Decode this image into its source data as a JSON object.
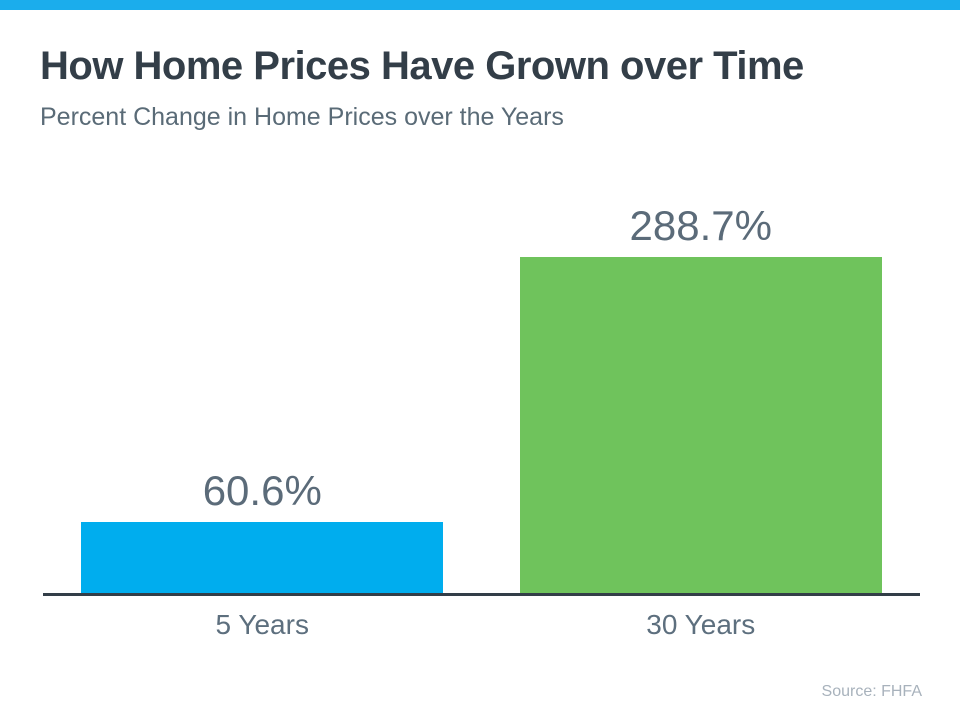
{
  "page": {
    "top_banner_color": "#1badec"
  },
  "header": {
    "title": "How Home Prices Have Grown over Time",
    "subtitle": "Percent Change in Home Prices over the Years"
  },
  "footer": {
    "source": "Source: FHFA"
  },
  "chart_data": {
    "type": "bar",
    "title": "How Home Prices Have Grown over Time",
    "subtitle": "Percent Change in Home Prices over the Years",
    "categories": [
      "5 Years",
      "30 Years"
    ],
    "values": [
      60.6,
      288.7
    ],
    "value_labels": [
      "60.6%",
      "288.7%"
    ],
    "bar_colors": [
      "#00adee",
      "#6fc35c"
    ],
    "xlabel": "",
    "ylabel": "",
    "ylim": [
      0,
      288.7
    ],
    "grid": false,
    "legend": false,
    "axis_color": "#333e48",
    "value_label_color": "#5b6b79",
    "tick_label_color": "#5d6f7e",
    "source": "Source: FHFA"
  }
}
